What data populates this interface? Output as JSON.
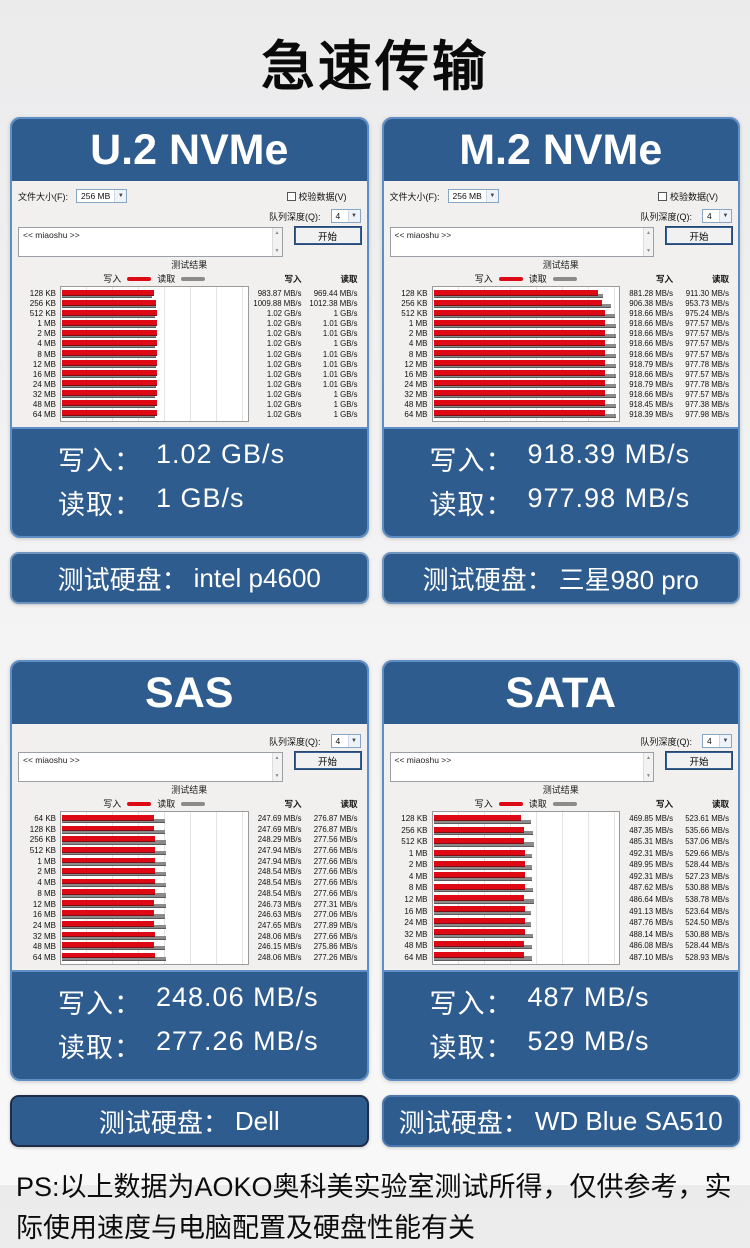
{
  "page": {
    "title": "急速传输",
    "footnote": "PS:以上数据为AOKO奥科美实验室测试所得，仅供参考，实际使用速度与电脑配置及硬盘性能有关"
  },
  "colors": {
    "panel_blue": "#2e5c8e",
    "panel_border": "#5d8fc6",
    "bar_write_red": "#dd0a15",
    "bar_read_gray": "#8b8b8b"
  },
  "ui": {
    "file_size_label": "文件大小(F):",
    "file_size_value": "256 MB",
    "verify_label": "校验数据(V)",
    "queue_label": "队列深度(Q):",
    "queue_value": "4",
    "start_button": "开始",
    "description_text": "<< miaoshu >>",
    "result_title": "测试结果",
    "legend_write": "写入",
    "legend_read": "读取",
    "col_write": "写入",
    "col_read": "读取",
    "summary_write_label": "写入：",
    "summary_read_label": "读取：",
    "disk_label": "测试硬盘："
  },
  "panels": [
    {
      "id": "u2-nvme",
      "title": "U.2 NVMe",
      "row_group": 1,
      "has_file_size_row": true,
      "axis_max_mbps": 2000,
      "rows": [
        [
          "128 KB",
          "983.87 MB/s",
          "969.44 MB/s",
          984,
          969
        ],
        [
          "256 KB",
          "1009.88 MB/s",
          "1012.38 MB/s",
          1010,
          1012
        ],
        [
          "512 KB",
          "1.02 GB/s",
          "1 GB/s",
          1020,
          1000
        ],
        [
          "1 MB",
          "1.02 GB/s",
          "1.01 GB/s",
          1020,
          1010
        ],
        [
          "2 MB",
          "1.02 GB/s",
          "1.01 GB/s",
          1020,
          1010
        ],
        [
          "4 MB",
          "1.02 GB/s",
          "1 GB/s",
          1020,
          1000
        ],
        [
          "8 MB",
          "1.02 GB/s",
          "1.01 GB/s",
          1020,
          1010
        ],
        [
          "12 MB",
          "1.02 GB/s",
          "1.01 GB/s",
          1020,
          1010
        ],
        [
          "16 MB",
          "1.02 GB/s",
          "1.01 GB/s",
          1020,
          1010
        ],
        [
          "24 MB",
          "1.02 GB/s",
          "1.01 GB/s",
          1020,
          1010
        ],
        [
          "32 MB",
          "1.02 GB/s",
          "1 GB/s",
          1020,
          1000
        ],
        [
          "48 MB",
          "1.02 GB/s",
          "1 GB/s",
          1020,
          1000
        ],
        [
          "64 MB",
          "1.02 GB/s",
          "1 GB/s",
          1020,
          1000
        ]
      ],
      "summary_write": "1.02 GB/s",
      "summary_read": "1 GB/s",
      "disk": "intel p4600",
      "disk_border": "#6f95bf"
    },
    {
      "id": "m2-nvme",
      "title": "M.2 NVMe",
      "row_group": 1,
      "has_file_size_row": true,
      "axis_max_mbps": 1000,
      "rows": [
        [
          "128 KB",
          "881.28 MB/s",
          "911.30 MB/s",
          881.28,
          911.3
        ],
        [
          "256 KB",
          "906.38 MB/s",
          "953.73 MB/s",
          906.38,
          953.73
        ],
        [
          "512 KB",
          "918.66 MB/s",
          "975.24 MB/s",
          918.66,
          975.24
        ],
        [
          "1 MB",
          "918.66 MB/s",
          "977.57 MB/s",
          918.66,
          977.57
        ],
        [
          "2 MB",
          "918.66 MB/s",
          "977.57 MB/s",
          918.66,
          977.57
        ],
        [
          "4 MB",
          "918.66 MB/s",
          "977.57 MB/s",
          918.66,
          977.57
        ],
        [
          "8 MB",
          "918.66 MB/s",
          "977.57 MB/s",
          918.66,
          977.57
        ],
        [
          "12 MB",
          "918.79 MB/s",
          "977.78 MB/s",
          918.79,
          977.78
        ],
        [
          "16 MB",
          "918.66 MB/s",
          "977.57 MB/s",
          918.66,
          977.57
        ],
        [
          "24 MB",
          "918.79 MB/s",
          "977.78 MB/s",
          918.79,
          977.78
        ],
        [
          "32 MB",
          "918.66 MB/s",
          "977.57 MB/s",
          918.66,
          977.57
        ],
        [
          "48 MB",
          "918.45 MB/s",
          "977.38 MB/s",
          918.45,
          977.38
        ],
        [
          "64 MB",
          "918.39 MB/s",
          "977.98 MB/s",
          918.39,
          977.98
        ]
      ],
      "summary_write": "918.39 MB/s",
      "summary_read": "977.98 MB/s",
      "disk": "三星980 pro",
      "disk_border": "#6f95bf"
    },
    {
      "id": "sas",
      "title": "SAS",
      "row_group": 2,
      "has_file_size_row": false,
      "axis_max_mbps": 500,
      "rows": [
        [
          "64 KB",
          "247.69 MB/s",
          "276.87 MB/s",
          247.69,
          276.87
        ],
        [
          "128 KB",
          "247.69 MB/s",
          "276.87 MB/s",
          247.69,
          276.87
        ],
        [
          "256 KB",
          "248.29 MB/s",
          "277.56 MB/s",
          248.29,
          277.56
        ],
        [
          "512 KB",
          "247.94 MB/s",
          "277.66 MB/s",
          247.94,
          277.66
        ],
        [
          "1 MB",
          "247.94 MB/s",
          "277.66 MB/s",
          247.94,
          277.66
        ],
        [
          "2 MB",
          "248.54 MB/s",
          "277.66 MB/s",
          248.54,
          277.66
        ],
        [
          "4 MB",
          "248.54 MB/s",
          "277.66 MB/s",
          248.54,
          277.66
        ],
        [
          "8 MB",
          "248.54 MB/s",
          "277.66 MB/s",
          248.54,
          277.66
        ],
        [
          "12 MB",
          "246.73 MB/s",
          "277.31 MB/s",
          246.73,
          277.31
        ],
        [
          "16 MB",
          "246.63 MB/s",
          "277.06 MB/s",
          246.63,
          277.06
        ],
        [
          "24 MB",
          "247.65 MB/s",
          "277.89 MB/s",
          247.65,
          277.89
        ],
        [
          "32 MB",
          "248.06 MB/s",
          "277.66 MB/s",
          248.06,
          277.66
        ],
        [
          "48 MB",
          "246.15 MB/s",
          "275.86 MB/s",
          246.15,
          275.86
        ],
        [
          "64 MB",
          "248.06 MB/s",
          "277.26 MB/s",
          248.06,
          277.26
        ]
      ],
      "summary_write": "248.06 MB/s",
      "summary_read": "277.26 MB/s",
      "disk": "Dell",
      "disk_border": "#1f2d49"
    },
    {
      "id": "sata",
      "title": "SATA",
      "row_group": 2,
      "has_file_size_row": false,
      "axis_max_mbps": 1000,
      "rows": [
        [
          "128 KB",
          "469.85 MB/s",
          "523.61 MB/s",
          469.85,
          523.61
        ],
        [
          "256 KB",
          "487.35 MB/s",
          "535.66 MB/s",
          487.35,
          535.66
        ],
        [
          "512 KB",
          "485.31 MB/s",
          "537.06 MB/s",
          485.31,
          537.06
        ],
        [
          "1 MB",
          "492.31 MB/s",
          "529.66 MB/s",
          492.31,
          529.66
        ],
        [
          "2 MB",
          "489.95 MB/s",
          "528.44 MB/s",
          489.95,
          528.44
        ],
        [
          "4 MB",
          "492.31 MB/s",
          "527.23 MB/s",
          492.31,
          527.23
        ],
        [
          "8 MB",
          "487.62 MB/s",
          "530.88 MB/s",
          487.62,
          530.88
        ],
        [
          "12 MB",
          "486.64 MB/s",
          "538.78 MB/s",
          486.64,
          538.78
        ],
        [
          "16 MB",
          "491.13 MB/s",
          "523.64 MB/s",
          491.13,
          523.64
        ],
        [
          "24 MB",
          "487.76 MB/s",
          "524.50 MB/s",
          487.76,
          524.5
        ],
        [
          "32 MB",
          "488.14 MB/s",
          "530.88 MB/s",
          488.14,
          530.88
        ],
        [
          "48 MB",
          "486.08 MB/s",
          "528.44 MB/s",
          486.08,
          528.44
        ],
        [
          "64 MB",
          "487.10 MB/s",
          "528.93 MB/s",
          487.1,
          528.93
        ]
      ],
      "summary_write": "487 MB/s",
      "summary_read": "529 MB/s",
      "disk": "WD Blue SA510",
      "disk_border": "#4d79ae"
    }
  ]
}
